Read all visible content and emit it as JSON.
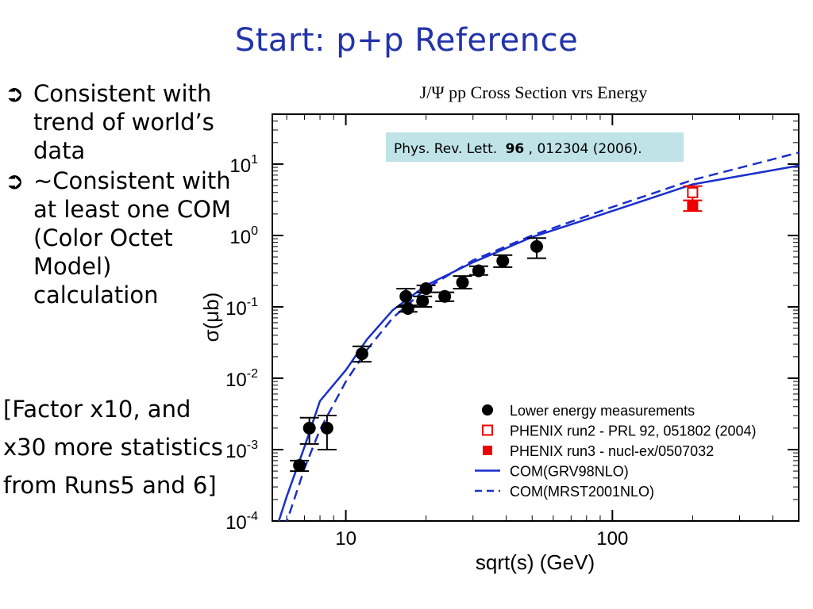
{
  "slide": {
    "title": "Start: p+p Reference",
    "bullets": [
      "Consistent with trend of world’s data",
      "~Consistent with at least one COM (Color Octet Model) calculation"
    ],
    "bullet_glyph": "➲",
    "factor_note": "[Factor x10, and x30 more statistics from Runs5 and 6]",
    "reference": {
      "journal": "Phys. Rev. Lett.",
      "volume": "96",
      "rest": ", 012304 (2006)."
    }
  },
  "chart_data": {
    "type": "scatter",
    "title": "J/Ψ pp Cross Section vrs Energy",
    "xlabel": "sqrt(s) (GeV)",
    "ylabel": "σ(μb)",
    "xscale": "log",
    "yscale": "log",
    "xlim": [
      5.3,
      500
    ],
    "ylim": [
      0.0001,
      50
    ],
    "x_ticks": [
      10,
      100
    ],
    "y_ticks": [
      {
        "value": 10,
        "base": "10",
        "exp": "1"
      },
      {
        "value": 1,
        "base": "10",
        "exp": "0"
      },
      {
        "value": 0.1,
        "base": "10",
        "exp": "-1"
      },
      {
        "value": 0.01,
        "base": "10",
        "exp": "-2"
      },
      {
        "value": 0.001,
        "base": "10",
        "exp": "-3"
      },
      {
        "value": 0.0001,
        "base": "10",
        "exp": "-4"
      }
    ],
    "legend_position": "bottom-right",
    "colors": {
      "data": "#000000",
      "phenix": "#ee0000",
      "theory": "#1a2fcc"
    },
    "series": [
      {
        "name": "Lower energy measurements",
        "marker": "filled-circle",
        "points": [
          {
            "x": 6.7,
            "y": 0.0006,
            "lo": 0.0005,
            "hi": 0.0007
          },
          {
            "x": 7.3,
            "y": 0.002,
            "lo": 0.0012,
            "hi": 0.0028
          },
          {
            "x": 8.5,
            "y": 0.002,
            "lo": 0.001,
            "hi": 0.003
          },
          {
            "x": 11.5,
            "y": 0.022,
            "lo": 0.017,
            "hi": 0.028
          },
          {
            "x": 16.8,
            "y": 0.14,
            "lo": 0.1,
            "hi": 0.18
          },
          {
            "x": 17.1,
            "y": 0.095,
            "lo": 0.085,
            "hi": 0.105
          },
          {
            "x": 19.4,
            "y": 0.12,
            "lo": 0.1,
            "hi": 0.14
          },
          {
            "x": 20.0,
            "y": 0.18,
            "lo": 0.16,
            "hi": 0.2
          },
          {
            "x": 23.5,
            "y": 0.14,
            "lo": 0.12,
            "hi": 0.16
          },
          {
            "x": 27.4,
            "y": 0.22,
            "lo": 0.18,
            "hi": 0.27
          },
          {
            "x": 31.5,
            "y": 0.32,
            "lo": 0.28,
            "hi": 0.37
          },
          {
            "x": 38.8,
            "y": 0.44,
            "lo": 0.36,
            "hi": 0.53
          },
          {
            "x": 52.0,
            "y": 0.7,
            "lo": 0.48,
            "hi": 0.92
          }
        ]
      },
      {
        "name": "PHENIX run2 - PRL 92, 051802 (2004)",
        "marker": "open-square",
        "points": [
          {
            "x": 200,
            "y": 3.99,
            "lo": 3.1,
            "hi": 4.9
          }
        ]
      },
      {
        "name": "PHENIX run3 - nucl-ex/0507032",
        "marker": "filled-square",
        "points": [
          {
            "x": 200,
            "y": 2.61,
            "lo": 2.2,
            "hi": 3.1
          }
        ]
      },
      {
        "name": "COM(GRV98NLO)",
        "style": "solid",
        "points": [
          {
            "x": 5.5,
            "y": 8e-05
          },
          {
            "x": 6,
            "y": 0.00022
          },
          {
            "x": 7,
            "y": 0.0011
          },
          {
            "x": 8,
            "y": 0.0048
          },
          {
            "x": 10,
            "y": 0.013
          },
          {
            "x": 12,
            "y": 0.035
          },
          {
            "x": 15,
            "y": 0.09
          },
          {
            "x": 20,
            "y": 0.2
          },
          {
            "x": 30,
            "y": 0.42
          },
          {
            "x": 50,
            "y": 0.95
          },
          {
            "x": 100,
            "y": 2.2
          },
          {
            "x": 200,
            "y": 5.2
          },
          {
            "x": 500,
            "y": 9.5
          }
        ]
      },
      {
        "name": "COM(MRST2001NLO)",
        "style": "dashed",
        "points": [
          {
            "x": 5.9,
            "y": 8e-05
          },
          {
            "x": 7,
            "y": 0.00055
          },
          {
            "x": 8,
            "y": 0.0019
          },
          {
            "x": 10,
            "y": 0.009
          },
          {
            "x": 12,
            "y": 0.025
          },
          {
            "x": 15,
            "y": 0.07
          },
          {
            "x": 20,
            "y": 0.18
          },
          {
            "x": 30,
            "y": 0.45
          },
          {
            "x": 50,
            "y": 1.0
          },
          {
            "x": 100,
            "y": 2.5
          },
          {
            "x": 200,
            "y": 6.0
          },
          {
            "x": 500,
            "y": 14.5
          }
        ]
      }
    ]
  }
}
